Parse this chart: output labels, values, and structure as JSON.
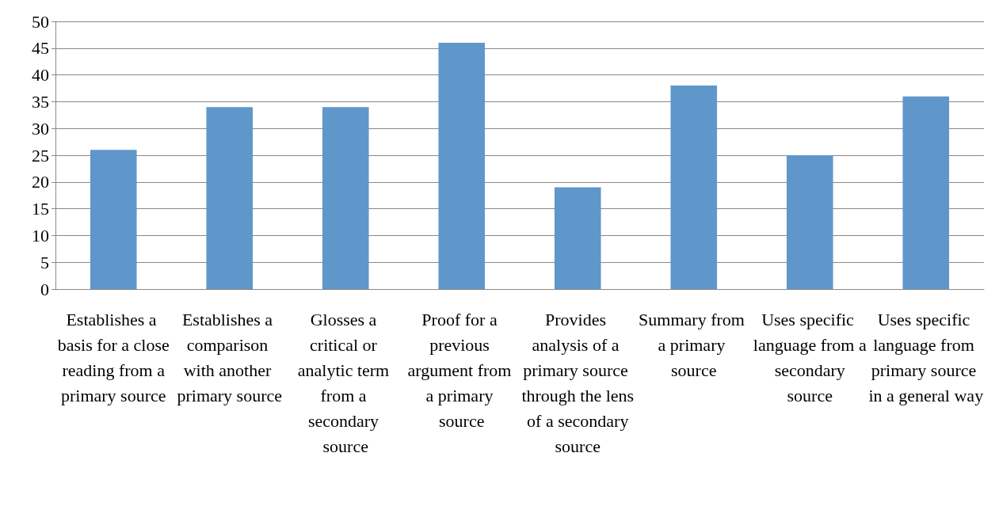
{
  "chart_data": {
    "type": "bar",
    "categories": [
      "Establishes a basis for a close reading from a primary source",
      "Establishes a comparison with another primary source",
      "Glosses a critical or analytic term from a secondary source",
      "Proof for a previous argument from a primary source",
      "Provides analysis of a primary source through the lens of a secondary source",
      "Summary from a primary source",
      "Uses specific language from a secondary source",
      "Uses specific language from primary source in a general way"
    ],
    "values": [
      26,
      34,
      34,
      46,
      19,
      38,
      25,
      36
    ],
    "color": "#6097cb",
    "ylim": [
      0,
      50
    ],
    "yticks": [
      0,
      5,
      10,
      15,
      20,
      25,
      30,
      35,
      40,
      45,
      50
    ],
    "grid": "y"
  }
}
